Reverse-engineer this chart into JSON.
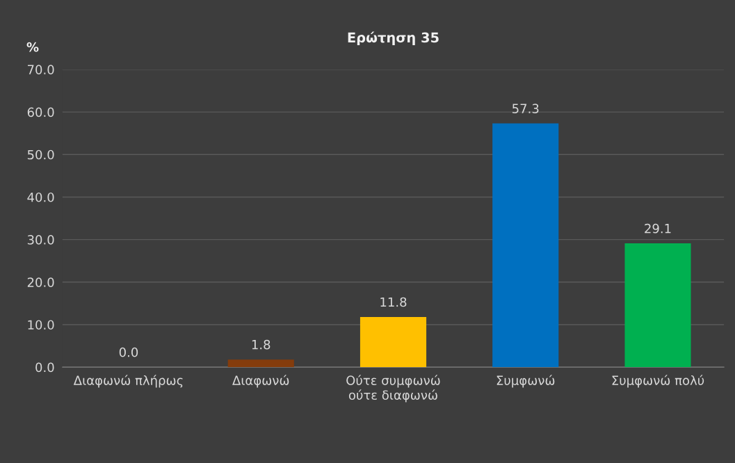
{
  "chart_data": {
    "type": "bar",
    "title": "Ερώτηση 35",
    "ylabel": "%",
    "categories": [
      "Διαφωνώ πλήρως",
      "Διαφωνώ",
      "Ούτε συμφωνώ\nούτε διαφωνώ",
      "Συμφωνώ",
      "Συμφωνώ πολύ"
    ],
    "values": [
      0.0,
      1.8,
      11.8,
      57.3,
      29.1
    ],
    "colors": [
      "#c00000",
      "#843c0c",
      "#ffc000",
      "#0070c0",
      "#00b050"
    ],
    "value_labels": [
      "0.0",
      "1.8",
      "11.8",
      "57.3",
      "29.1"
    ],
    "ylim": [
      0,
      70
    ],
    "yticks": [
      {
        "value": 0,
        "label": "0.0"
      },
      {
        "value": 10,
        "label": "10.0"
      },
      {
        "value": 20,
        "label": "20.0"
      },
      {
        "value": 30,
        "label": "30.0"
      },
      {
        "value": 40,
        "label": "40.0"
      },
      {
        "value": 50,
        "label": "50.0"
      },
      {
        "value": 60,
        "label": "60.0"
      },
      {
        "value": 70,
        "label": "70.0"
      }
    ],
    "grid": "y",
    "legend": false
  }
}
